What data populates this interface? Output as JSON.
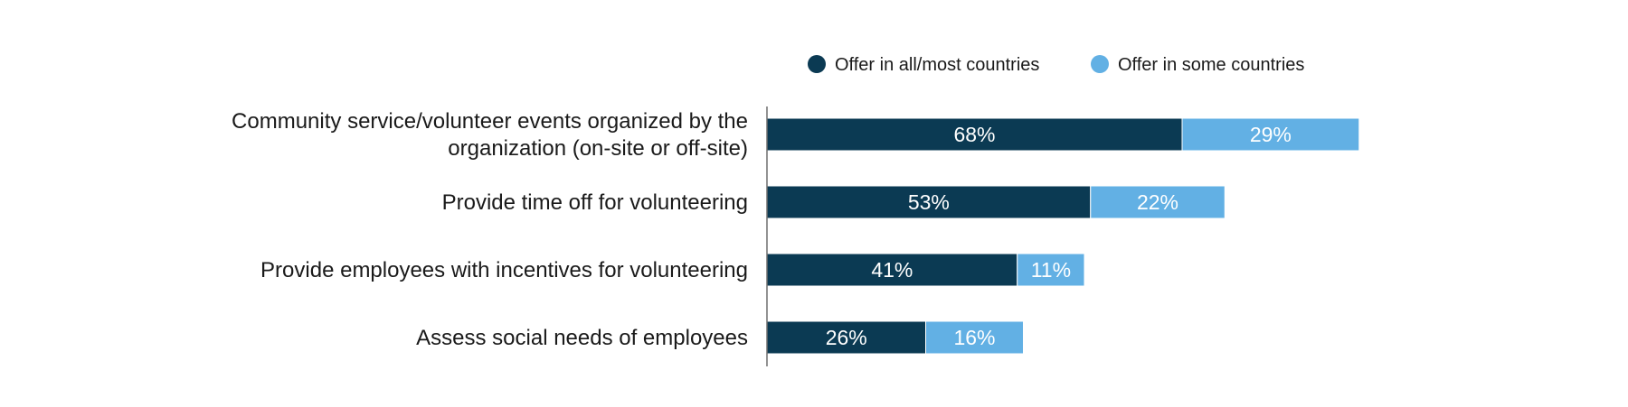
{
  "chart_data": {
    "type": "bar",
    "orientation": "horizontal",
    "stacked": true,
    "title": "",
    "xlabel": "",
    "ylabel": "",
    "xlim": [
      0,
      100
    ],
    "grid": false,
    "legend": {
      "placement": "top"
    },
    "categories": [
      [
        "Community service/volunteer events organized by the",
        "organization (on-site or off-site)"
      ],
      [
        "Provide time off for volunteering"
      ],
      [
        "Provide employees with incentives for volunteering"
      ],
      [
        "Assess social needs of employees"
      ]
    ],
    "series": [
      {
        "name": "Offer in all/most countries",
        "color": "#0b3a53",
        "values": [
          68,
          53,
          41,
          26
        ],
        "labels": [
          "68%",
          "53%",
          "41%",
          "26%"
        ]
      },
      {
        "name": "Offer in some countries",
        "color": "#62b0e4",
        "values": [
          29,
          22,
          11,
          16
        ],
        "labels": [
          "29%",
          "22%",
          "11%",
          "16%"
        ]
      }
    ]
  }
}
